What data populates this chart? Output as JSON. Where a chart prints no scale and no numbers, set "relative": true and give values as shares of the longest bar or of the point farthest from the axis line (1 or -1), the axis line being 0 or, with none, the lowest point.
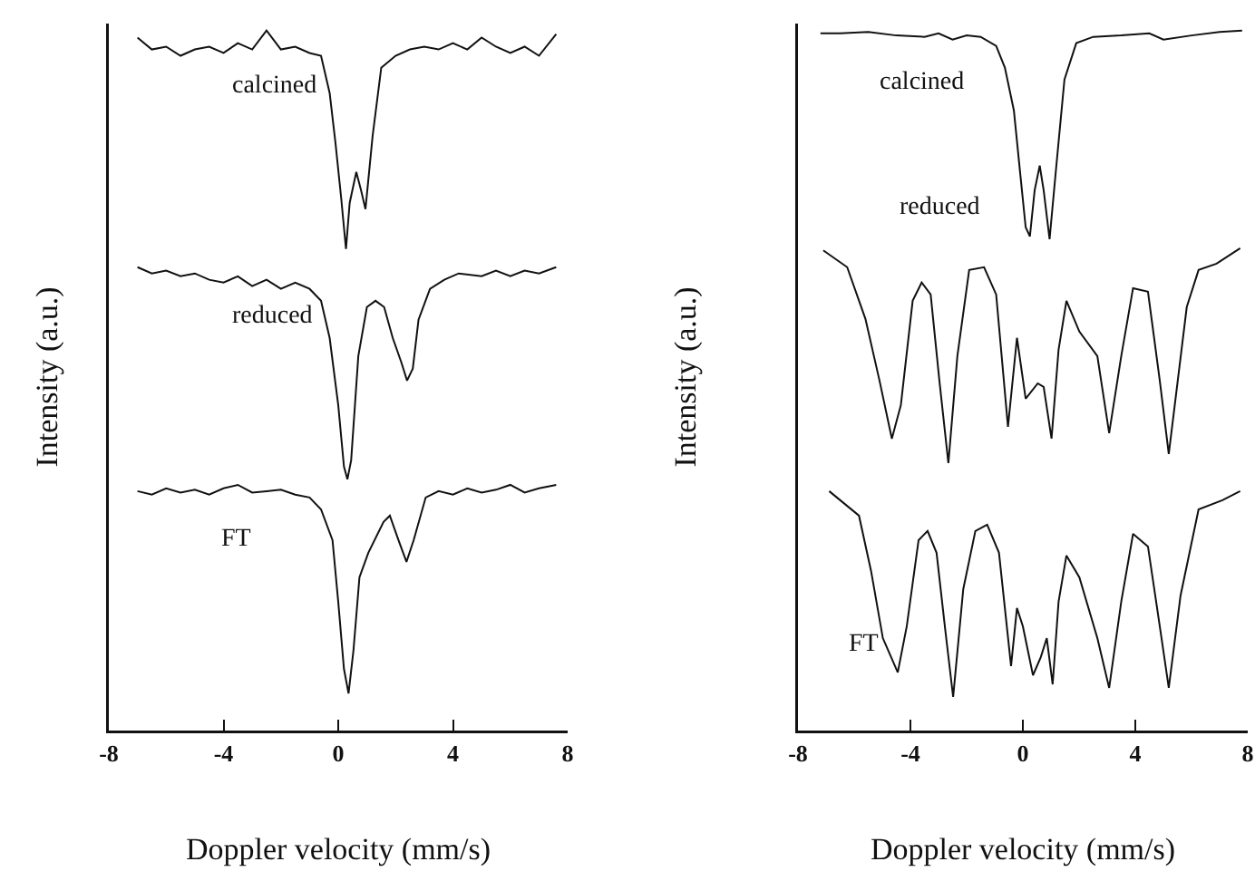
{
  "chart_data": [
    {
      "type": "line",
      "relative": true,
      "xlabel": "Doppler velocity (mm/s)",
      "ylabel": "Intensity (a.u.)",
      "xlim": [
        -8,
        8
      ],
      "xticks": [
        -8,
        -4,
        0,
        4,
        8
      ],
      "grid": false,
      "legend": false,
      "marker": "none",
      "line_style": "solid",
      "series": [
        {
          "name": "calcined",
          "color": "#111111",
          "x": [
            -7.0,
            -6.5,
            -6.0,
            -5.5,
            -5.0,
            -4.5,
            -4.0,
            -3.5,
            -3.0,
            -2.5,
            -2.0,
            -1.5,
            -1.0,
            -0.6,
            -0.3,
            -0.1,
            0.1,
            0.27,
            0.4,
            0.63,
            0.8,
            0.95,
            1.2,
            1.5,
            2.0,
            2.5,
            3.0,
            3.5,
            4.0,
            4.5,
            5.0,
            5.5,
            6.0,
            6.5,
            7.0,
            7.6
          ],
          "values": [
            0.99,
            0.973,
            0.977,
            0.964,
            0.973,
            0.977,
            0.968,
            0.982,
            0.973,
            1.0,
            0.973,
            0.977,
            0.968,
            0.964,
            0.911,
            0.841,
            0.762,
            0.688,
            0.754,
            0.798,
            0.771,
            0.745,
            0.85,
            0.947,
            0.964,
            0.973,
            0.977,
            0.973,
            0.982,
            0.973,
            0.99,
            0.977,
            0.968,
            0.977,
            0.964,
            0.995
          ]
        },
        {
          "name": "reduced",
          "color": "#111111",
          "x": [
            -7.0,
            -6.5,
            -6.0,
            -5.5,
            -5.0,
            -4.5,
            -4.0,
            -3.5,
            -3.0,
            -2.5,
            -2.0,
            -1.5,
            -1.0,
            -0.6,
            -0.3,
            0.0,
            0.2,
            0.32,
            0.45,
            0.7,
            1.0,
            1.3,
            1.6,
            1.9,
            2.2,
            2.4,
            2.6,
            2.8,
            3.2,
            3.7,
            4.2,
            5.0,
            5.5,
            6.0,
            6.5,
            7.0,
            7.6
          ],
          "values": [
            0.662,
            0.653,
            0.657,
            0.649,
            0.653,
            0.644,
            0.64,
            0.649,
            0.635,
            0.644,
            0.631,
            0.64,
            0.631,
            0.614,
            0.561,
            0.465,
            0.377,
            0.359,
            0.386,
            0.535,
            0.605,
            0.614,
            0.605,
            0.561,
            0.526,
            0.5,
            0.517,
            0.587,
            0.631,
            0.644,
            0.653,
            0.649,
            0.657,
            0.649,
            0.657,
            0.653,
            0.662
          ]
        },
        {
          "name": "FT",
          "color": "#111111",
          "x": [
            -7.0,
            -6.5,
            -6.0,
            -5.5,
            -5.0,
            -4.5,
            -4.0,
            -3.5,
            -3.0,
            -2.5,
            -2.0,
            -1.5,
            -1.0,
            -0.6,
            -0.2,
            0.0,
            0.2,
            0.36,
            0.53,
            0.74,
            1.05,
            1.58,
            1.8,
            2.1,
            2.38,
            2.63,
            3.05,
            3.5,
            4.0,
            4.5,
            5.0,
            5.5,
            6.0,
            6.5,
            7.0,
            7.6
          ],
          "values": [
            0.342,
            0.337,
            0.346,
            0.34,
            0.344,
            0.337,
            0.346,
            0.351,
            0.34,
            0.342,
            0.344,
            0.337,
            0.333,
            0.316,
            0.272,
            0.184,
            0.088,
            0.053,
            0.114,
            0.219,
            0.254,
            0.298,
            0.307,
            0.272,
            0.241,
            0.272,
            0.333,
            0.342,
            0.337,
            0.346,
            0.34,
            0.344,
            0.351,
            0.34,
            0.346,
            0.351
          ]
        }
      ]
    },
    {
      "type": "line",
      "relative": true,
      "xlabel": "Doppler velocity (mm/s)",
      "ylabel": "Intensity (a.u.)",
      "xlim": [
        -8,
        8
      ],
      "xticks": [
        -8,
        -4,
        0,
        4,
        8
      ],
      "grid": false,
      "legend": false,
      "marker": "none",
      "line_style": "solid",
      "series": [
        {
          "name": "calcined",
          "color": "#111111",
          "x": [
            -7.2,
            -6.5,
            -5.5,
            -4.5,
            -3.5,
            -3.0,
            -2.5,
            -2.0,
            -1.5,
            -0.95,
            -0.64,
            -0.32,
            -0.1,
            0.1,
            0.25,
            0.42,
            0.6,
            0.74,
            0.95,
            1.17,
            1.48,
            1.9,
            2.5,
            3.5,
            4.5,
            5.0,
            6.0,
            7.0,
            7.8
          ],
          "values": [
            0.996,
            0.996,
            0.998,
            0.993,
            0.991,
            0.996,
            0.987,
            0.993,
            0.991,
            0.978,
            0.947,
            0.886,
            0.798,
            0.719,
            0.706,
            0.772,
            0.807,
            0.772,
            0.702,
            0.798,
            0.93,
            0.982,
            0.991,
            0.993,
            0.996,
            0.987,
            0.993,
            0.998,
            1.0
          ]
        },
        {
          "name": "reduced",
          "color": "#111111",
          "x": [
            -7.1,
            -6.25,
            -5.6,
            -5.1,
            -4.66,
            -4.34,
            -3.92,
            -3.6,
            -3.28,
            -2.97,
            -2.65,
            -2.33,
            -1.91,
            -1.38,
            -0.95,
            -0.53,
            -0.21,
            0.1,
            0.53,
            0.74,
            1.02,
            1.27,
            1.55,
            2.01,
            2.65,
            3.07,
            3.5,
            3.92,
            4.45,
            4.87,
            5.19,
            5.51,
            5.83,
            6.25,
            6.89,
            7.73
          ],
          "values": [
            0.686,
            0.662,
            0.588,
            0.5,
            0.417,
            0.465,
            0.614,
            0.64,
            0.623,
            0.5,
            0.382,
            0.535,
            0.658,
            0.662,
            0.623,
            0.434,
            0.561,
            0.474,
            0.496,
            0.491,
            0.417,
            0.544,
            0.614,
            0.57,
            0.535,
            0.425,
            0.535,
            0.632,
            0.627,
            0.5,
            0.395,
            0.5,
            0.605,
            0.658,
            0.667,
            0.689
          ]
        },
        {
          "name": "FT",
          "color": "#111111",
          "x": [
            -6.89,
            -5.83,
            -5.4,
            -4.98,
            -4.45,
            -4.13,
            -3.71,
            -3.39,
            -3.07,
            -2.75,
            -2.48,
            -2.12,
            -1.69,
            -1.27,
            -0.85,
            -0.42,
            -0.21,
            0.0,
            0.36,
            0.64,
            0.85,
            1.06,
            1.27,
            1.55,
            2.01,
            2.65,
            3.07,
            3.5,
            3.92,
            4.45,
            4.87,
            5.19,
            5.61,
            6.25,
            7.1,
            7.73
          ],
          "values": [
            0.342,
            0.307,
            0.228,
            0.132,
            0.083,
            0.149,
            0.272,
            0.285,
            0.254,
            0.14,
            0.048,
            0.202,
            0.285,
            0.294,
            0.254,
            0.092,
            0.175,
            0.149,
            0.079,
            0.105,
            0.132,
            0.066,
            0.184,
            0.25,
            0.219,
            0.132,
            0.061,
            0.184,
            0.281,
            0.263,
            0.149,
            0.061,
            0.193,
            0.316,
            0.329,
            0.342
          ]
        }
      ]
    }
  ]
}
